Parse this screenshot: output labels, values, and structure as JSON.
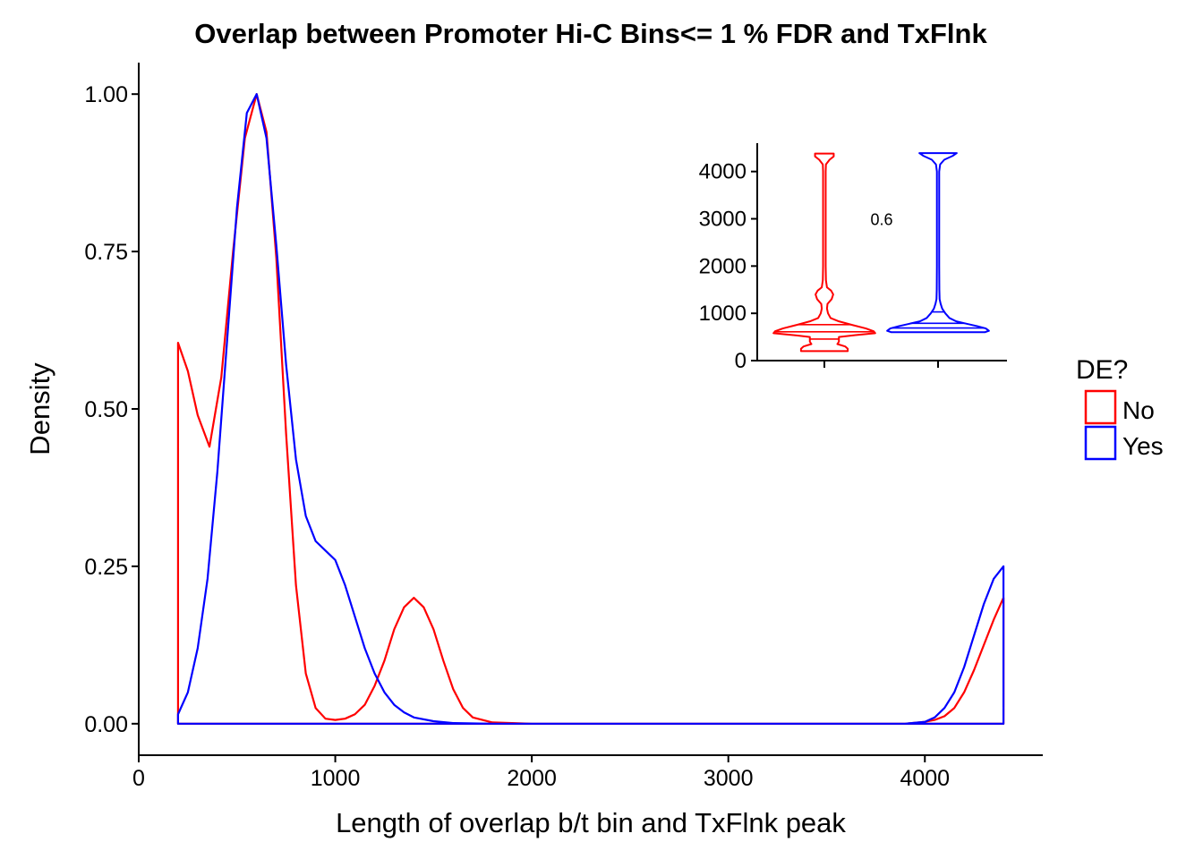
{
  "chart_data": [
    {
      "type": "area",
      "title": "Overlap between Promoter Hi-C Bins<= 1 % FDR and TxFlnk",
      "xlabel": "Length of overlap b/t bin and TxFlnk peak",
      "ylabel": "Density",
      "xlim": [
        0,
        4600
      ],
      "ylim": [
        -0.05,
        1.05
      ],
      "xticks": [
        0,
        1000,
        2000,
        3000,
        4000
      ],
      "yticks": [
        0.0,
        0.25,
        0.5,
        0.75,
        1.0
      ],
      "xtick_labels": [
        "0",
        "1000",
        "2000",
        "3000",
        "4000"
      ],
      "ytick_labels": [
        "0.00",
        "0.25",
        "0.50",
        "0.75",
        "1.00"
      ],
      "grid": false,
      "legend": {
        "title": "DE?",
        "position": "right"
      },
      "series": [
        {
          "name": "No",
          "color": "#ff0000",
          "x": [
            200,
            250,
            300,
            360,
            420,
            480,
            540,
            600,
            650,
            700,
            750,
            800,
            850,
            900,
            950,
            1000,
            1050,
            1100,
            1150,
            1200,
            1250,
            1300,
            1350,
            1400,
            1450,
            1500,
            1550,
            1600,
            1650,
            1700,
            1800,
            2000,
            3000,
            3900,
            4000,
            4050,
            4100,
            4150,
            4200,
            4250,
            4300,
            4350,
            4400
          ],
          "y": [
            0.605,
            0.56,
            0.49,
            0.44,
            0.55,
            0.75,
            0.93,
            1.0,
            0.94,
            0.74,
            0.46,
            0.22,
            0.08,
            0.025,
            0.008,
            0.006,
            0.008,
            0.015,
            0.03,
            0.06,
            0.1,
            0.15,
            0.185,
            0.2,
            0.185,
            0.15,
            0.1,
            0.055,
            0.025,
            0.01,
            0.002,
            0.0,
            0.0,
            0.0,
            0.003,
            0.006,
            0.012,
            0.025,
            0.05,
            0.085,
            0.125,
            0.165,
            0.2
          ]
        },
        {
          "name": "Yes",
          "color": "#0000ff",
          "x": [
            200,
            250,
            300,
            350,
            400,
            450,
            500,
            550,
            600,
            650,
            700,
            750,
            800,
            850,
            900,
            950,
            1000,
            1050,
            1100,
            1150,
            1200,
            1250,
            1300,
            1350,
            1400,
            1500,
            1600,
            1800,
            2000,
            3000,
            3900,
            4000,
            4050,
            4100,
            4150,
            4200,
            4250,
            4300,
            4350,
            4400
          ],
          "y": [
            0.015,
            0.05,
            0.12,
            0.23,
            0.4,
            0.61,
            0.82,
            0.97,
            1.0,
            0.93,
            0.76,
            0.57,
            0.42,
            0.33,
            0.29,
            0.275,
            0.26,
            0.22,
            0.17,
            0.12,
            0.08,
            0.05,
            0.03,
            0.018,
            0.01,
            0.004,
            0.001,
            0.0,
            0.0,
            0.0,
            0.0,
            0.003,
            0.01,
            0.025,
            0.05,
            0.09,
            0.14,
            0.19,
            0.23,
            0.25
          ]
        }
      ]
    },
    {
      "type": "violin",
      "categories": [
        "No",
        "Yes"
      ],
      "ylim": [
        0,
        4600
      ],
      "yticks": [
        0,
        1000,
        2000,
        3000,
        4000
      ],
      "ytick_labels": [
        "0",
        "1000",
        "2000",
        "3000",
        "4000"
      ],
      "annotation": "0.6",
      "series": [
        {
          "name": "No",
          "color": "#ff0000",
          "profile": [
            [
              200,
              0.45
            ],
            [
              250,
              0.45
            ],
            [
              300,
              0.4
            ],
            [
              350,
              0.25
            ],
            [
              400,
              0.28
            ],
            [
              450,
              0.28
            ],
            [
              500,
              0.28
            ],
            [
              540,
              0.6
            ],
            [
              580,
              0.98
            ],
            [
              620,
              0.95
            ],
            [
              680,
              0.8
            ],
            [
              750,
              0.55
            ],
            [
              830,
              0.28
            ],
            [
              900,
              0.12
            ],
            [
              1000,
              0.07
            ],
            [
              1100,
              0.05
            ],
            [
              1200,
              0.06
            ],
            [
              1300,
              0.14
            ],
            [
              1400,
              0.17
            ],
            [
              1480,
              0.13
            ],
            [
              1550,
              0.05
            ],
            [
              1700,
              0.03
            ],
            [
              2000,
              0.025
            ],
            [
              3000,
              0.025
            ],
            [
              4000,
              0.025
            ],
            [
              4150,
              0.03
            ],
            [
              4250,
              0.1
            ],
            [
              4320,
              0.18
            ],
            [
              4380,
              0.18
            ]
          ],
          "quantiles": [
            455,
            610,
            760
          ]
        },
        {
          "name": "Yes",
          "color": "#0000ff",
          "profile": [
            [
              600,
              0.9
            ],
            [
              630,
              0.98
            ],
            [
              680,
              0.92
            ],
            [
              730,
              0.75
            ],
            [
              780,
              0.55
            ],
            [
              830,
              0.35
            ],
            [
              900,
              0.22
            ],
            [
              1000,
              0.14
            ],
            [
              1100,
              0.08
            ],
            [
              1200,
              0.05
            ],
            [
              1300,
              0.03
            ],
            [
              1500,
              0.025
            ],
            [
              2000,
              0.022
            ],
            [
              3000,
              0.022
            ],
            [
              4000,
              0.022
            ],
            [
              4150,
              0.04
            ],
            [
              4250,
              0.12
            ],
            [
              4330,
              0.28
            ],
            [
              4390,
              0.36
            ]
          ],
          "quantiles": [
            690,
            790,
            1030
          ]
        }
      ]
    }
  ]
}
